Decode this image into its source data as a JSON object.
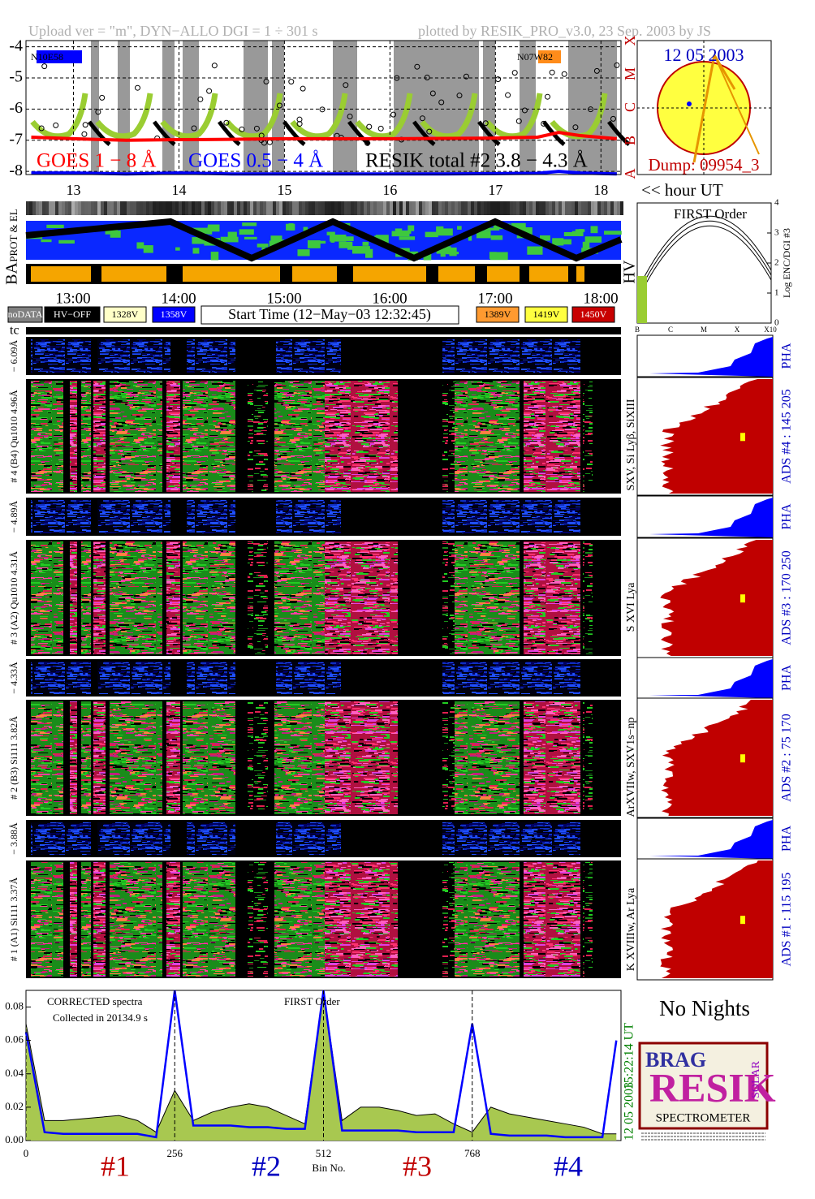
{
  "header": {
    "left": "Upload ver = \"m\", DYN−ALLO DGI =   1 ÷ 301 s",
    "right": "plotted by RESIK_PRO_v3.0, 23 Sep. 2003 by JS"
  },
  "goes": {
    "type": "line",
    "xlim": [
      12.55,
      18.19
    ],
    "ylim": [
      -8.1,
      -3.8
    ],
    "yticks": [
      -4,
      -5,
      -6,
      -7,
      -8
    ],
    "xticks": [
      13,
      14,
      15,
      16,
      17,
      18
    ],
    "x_label": "<< hour UT",
    "flare_classes": [
      "X",
      "M",
      "C",
      "B",
      "A"
    ],
    "tags": [
      "N10E58",
      "N07W82"
    ],
    "labels": [
      "GOES 1 − 8 Å",
      "GOES 0.5 − 4 Å",
      "RESIK total #2  3.8 − 4.3 Å"
    ],
    "x": [
      12.6,
      13.0,
      13.5,
      14.0,
      14.5,
      15.0,
      15.5,
      16.0,
      16.5,
      17.0,
      17.4,
      17.6,
      17.8,
      18.15
    ],
    "series": [
      {
        "name": "GOES 1 − 8 Å",
        "color": "#ff0000",
        "values": [
          -6.9,
          -6.95,
          -7.0,
          -6.98,
          -6.97,
          -6.95,
          -6.95,
          -6.95,
          -6.94,
          -6.93,
          -6.9,
          -6.75,
          -6.85,
          -6.95
        ]
      },
      {
        "name": "GOES 0.5 − 4 Å",
        "color": "#0000ff",
        "values": [
          -8.05,
          -8.05,
          -8.08,
          -8.05,
          -8.08,
          -8.08,
          -8.08,
          -8.08,
          -8.08,
          -8.07,
          -8.06,
          -8.0,
          -8.05,
          -8.08
        ]
      }
    ]
  },
  "sun": {
    "date": "12 05 2003",
    "dump": "Dump: 09954_3"
  },
  "orbit": {
    "labels": [
      "PROT & EL",
      "BA",
      "HV"
    ]
  },
  "order_panel": {
    "title": "FIRST Order",
    "y_label": "Log ENC/DGI #3",
    "yticks": [
      0,
      1,
      2,
      3,
      4
    ],
    "ylim": [
      0,
      4
    ],
    "x_labels": [
      "B",
      "C",
      "M",
      "X",
      "X10"
    ]
  },
  "timebar": {
    "hours": [
      "13:00",
      "14:00",
      "15:00",
      "16:00",
      "17:00",
      "18:00"
    ],
    "legend": [
      "noDATA",
      "HV−OFF",
      "1328V",
      "1358V"
    ],
    "legend_right": [
      "1389V",
      "1419V",
      "1450V"
    ],
    "start": "Start Time (12−May−03 12:32:45)",
    "tc": "tc"
  },
  "channels": [
    {
      "range": "− 6.09Å",
      "name": "# 4 (B4) Qu1010 4.96Å",
      "lines": "SXV, Si Lyβ, SiXIII",
      "ads": "ADS #4 :  145 205",
      "pha": "PHA"
    },
    {
      "range": "− 4.89Å",
      "name": "# 3 (A2) Qu1010 4.31Å",
      "lines": "S XVI Lya",
      "ads": "ADS #3 :  170 250",
      "pha": "PHA"
    },
    {
      "range": "− 4.33Å",
      "name": "# 2 (B3) Si111 3.82Å",
      "lines": "ArXVIIw, SXV1s−np",
      "ads": "ADS #2 :   75 170",
      "pha": "PHA"
    },
    {
      "range": "− 3.88Å",
      "name": "# 1 (A1) Si111 3.37Å",
      "lines": "K XVIIIw, Ar Lya",
      "ads": "ADS #1 :  115 195",
      "pha": "PHA"
    }
  ],
  "chart_data": {
    "type": "line",
    "title": "FIRST Order",
    "notes": [
      "CORRECTED spectra",
      "Collected in 20134.9 s"
    ],
    "x_label": "Bin No.",
    "xlim": [
      0,
      1024
    ],
    "xticks": [
      0,
      256,
      512,
      768
    ],
    "ylim": [
      0,
      0.09
    ],
    "yticks": [
      {
        "value": 0,
        "label": "0.00"
      },
      {
        "value": 0.02,
        "label": "0.02"
      },
      {
        "value": 0.04,
        "label": "0.04"
      },
      {
        "value": 0.06,
        "label": "0.06"
      },
      {
        "value": 0.08,
        "label": "0.08"
      }
    ],
    "channel_labels": [
      "#1",
      "#2",
      "#3",
      "#4"
    ],
    "stamp": [
      "15:22:14 UT",
      "12 05 2003"
    ],
    "x": [
      0,
      32,
      64,
      96,
      128,
      160,
      192,
      224,
      256,
      288,
      320,
      352,
      384,
      416,
      448,
      480,
      512,
      544,
      576,
      608,
      640,
      672,
      704,
      736,
      768,
      800,
      832,
      864,
      896,
      928,
      960,
      992,
      1016
    ],
    "series": [
      {
        "name": "total",
        "color": "#000000",
        "values": [
          0.07,
          0.012,
          0.012,
          0.013,
          0.014,
          0.015,
          0.012,
          0.005,
          0.03,
          0.012,
          0.017,
          0.02,
          0.022,
          0.02,
          0.015,
          0.01,
          0.09,
          0.012,
          0.02,
          0.02,
          0.018,
          0.015,
          0.016,
          0.01,
          0.005,
          0.02,
          0.016,
          0.014,
          0.012,
          0.01,
          0.008,
          0.004,
          0.004
        ]
      },
      {
        "name": "corrected",
        "color": "#0000ff",
        "values": [
          0.065,
          0.005,
          0.004,
          0.004,
          0.004,
          0.004,
          0.004,
          0.002,
          0.09,
          0.009,
          0.009,
          0.009,
          0.008,
          0.008,
          0.007,
          0.007,
          0.09,
          0.006,
          0.006,
          0.006,
          0.006,
          0.005,
          0.005,
          0.005,
          0.07,
          0.004,
          0.003,
          0.003,
          0.003,
          0.002,
          0.002,
          0.002,
          0.06
        ]
      }
    ]
  },
  "no_nights": "No Nights",
  "logo": [
    "BRAG",
    "RESIK",
    "SOLAR",
    "SPECTROMETER"
  ]
}
